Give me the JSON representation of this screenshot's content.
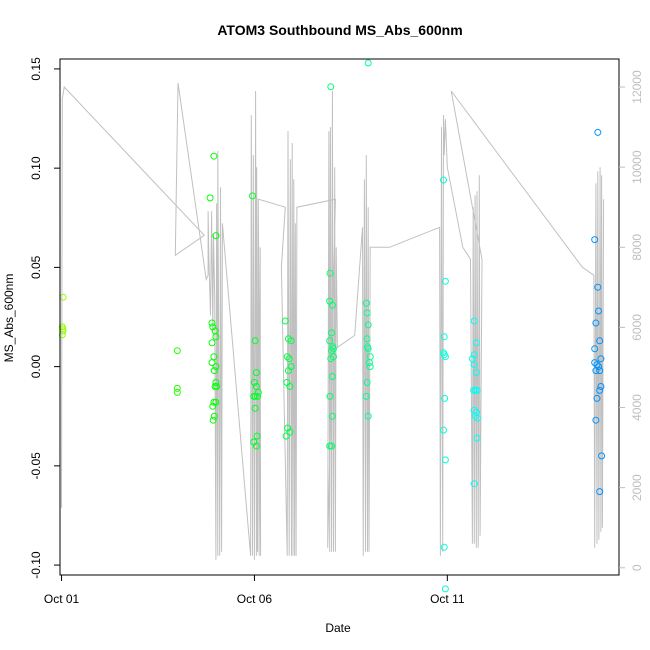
{
  "chart_data": {
    "type": "scatter",
    "title": "ATOM3 Southbound MS_Abs_600nm",
    "xlabel": "Date",
    "ylabel": "MS_Abs_600nm",
    "x_ticks": [
      {
        "value": 0,
        "label": "Oct 01"
      },
      {
        "value": 5,
        "label": "Oct 06"
      },
      {
        "value": 10,
        "label": "Oct 11"
      }
    ],
    "xlim": [
      -0.04,
      14.45
    ],
    "ylim": [
      -0.105,
      0.155
    ],
    "y_ticks": [
      -0.1,
      -0.05,
      0.0,
      0.05,
      0.1,
      0.15
    ],
    "y_tick_labels": [
      "-0.10",
      "-0.05",
      "0.00",
      "0.05",
      "0.10",
      "0.15"
    ],
    "y2lim": [
      -180,
      12700
    ],
    "y2_ticks": [
      0,
      2000,
      4000,
      6000,
      8000,
      10000,
      12000
    ],
    "y2_tick_labels": [
      "0",
      "2000",
      "4000",
      "6000",
      "8000",
      "10000",
      "12000"
    ],
    "grid": false,
    "legend": "none",
    "colors": {
      "axis": "#000000",
      "secondary_axis": "#bebebe",
      "altitude_line": "#c0c0c0",
      "first_point": "#adff2f",
      "last_point": "#1e90ff"
    },
    "series": [
      {
        "marker": "open-circle",
        "points": [
          [
            0.02,
            0.02
          ],
          [
            0.03,
            0.019
          ],
          [
            0.02,
            0.016
          ],
          [
            0.04,
            0.018
          ],
          [
            0.04,
            0.035
          ],
          [
            3.0,
            0.008
          ],
          [
            3.0,
            -0.011
          ],
          [
            3.0,
            -0.013
          ],
          [
            3.85,
            0.085
          ],
          [
            3.9,
            0.022
          ],
          [
            3.9,
            0.012
          ],
          [
            3.95,
            0.106
          ],
          [
            4.0,
            0.066
          ],
          [
            3.92,
            0.02
          ],
          [
            3.98,
            0.018
          ],
          [
            3.95,
            0.005
          ],
          [
            3.9,
            0.002
          ],
          [
            4.0,
            0.0
          ],
          [
            3.96,
            -0.002
          ],
          [
            4.0,
            -0.008
          ],
          [
            3.98,
            -0.01
          ],
          [
            4.02,
            -0.01
          ],
          [
            3.95,
            -0.018
          ],
          [
            4.0,
            -0.018
          ],
          [
            3.92,
            -0.02
          ],
          [
            3.96,
            -0.025
          ],
          [
            3.93,
            -0.027
          ],
          [
            4.0,
            0.015
          ],
          [
            4.95,
            0.086
          ],
          [
            5.02,
            0.013
          ],
          [
            5.05,
            -0.003
          ],
          [
            5.0,
            -0.008
          ],
          [
            5.05,
            -0.01
          ],
          [
            5.1,
            -0.013
          ],
          [
            4.98,
            -0.015
          ],
          [
            5.02,
            -0.015
          ],
          [
            5.08,
            -0.015
          ],
          [
            5.02,
            -0.021
          ],
          [
            5.07,
            -0.035
          ],
          [
            4.98,
            -0.038
          ],
          [
            5.05,
            -0.04
          ],
          [
            5.8,
            0.023
          ],
          [
            5.88,
            0.014
          ],
          [
            5.95,
            0.013
          ],
          [
            5.85,
            0.005
          ],
          [
            5.9,
            0.004
          ],
          [
            5.95,
            0.0
          ],
          [
            5.88,
            -0.002
          ],
          [
            5.84,
            -0.008
          ],
          [
            5.92,
            -0.01
          ],
          [
            5.86,
            -0.031
          ],
          [
            5.92,
            -0.033
          ],
          [
            5.82,
            -0.035
          ],
          [
            6.98,
            0.141
          ],
          [
            6.96,
            0.047
          ],
          [
            6.95,
            0.033
          ],
          [
            7.02,
            0.031
          ],
          [
            7.0,
            0.017
          ],
          [
            6.95,
            0.013
          ],
          [
            7.03,
            0.01
          ],
          [
            7.0,
            0.008
          ],
          [
            7.05,
            0.005
          ],
          [
            6.98,
            0.004
          ],
          [
            7.02,
            -0.005
          ],
          [
            6.96,
            -0.015
          ],
          [
            7.02,
            -0.025
          ],
          [
            6.95,
            -0.04
          ],
          [
            7.0,
            -0.04
          ],
          [
            7.05,
            0.009
          ],
          [
            7.95,
            0.153
          ],
          [
            7.9,
            0.032
          ],
          [
            7.92,
            0.027
          ],
          [
            7.95,
            0.021
          ],
          [
            7.92,
            0.014
          ],
          [
            7.93,
            0.01
          ],
          [
            7.95,
            0.009
          ],
          [
            8.0,
            0.005
          ],
          [
            7.98,
            0.002
          ],
          [
            8.0,
            0.0
          ],
          [
            7.92,
            -0.008
          ],
          [
            7.9,
            -0.015
          ],
          [
            7.95,
            -0.025
          ],
          [
            9.9,
            0.094
          ],
          [
            9.95,
            0.043
          ],
          [
            9.92,
            0.015
          ],
          [
            9.9,
            0.007
          ],
          [
            9.92,
            0.006
          ],
          [
            9.95,
            0.005
          ],
          [
            9.93,
            -0.016
          ],
          [
            9.9,
            -0.032
          ],
          [
            9.95,
            -0.047
          ],
          [
            9.92,
            -0.091
          ],
          [
            9.95,
            -0.112
          ],
          [
            10.7,
            0.023
          ],
          [
            10.75,
            0.012
          ],
          [
            10.7,
            0.006
          ],
          [
            10.65,
            0.004
          ],
          [
            10.7,
            0.001
          ],
          [
            10.75,
            -0.003
          ],
          [
            10.68,
            -0.012
          ],
          [
            10.72,
            -0.012
          ],
          [
            10.77,
            -0.012
          ],
          [
            10.7,
            -0.022
          ],
          [
            10.75,
            -0.023
          ],
          [
            10.72,
            -0.025
          ],
          [
            10.78,
            -0.026
          ],
          [
            10.77,
            -0.036
          ],
          [
            10.7,
            -0.059
          ],
          [
            13.9,
            0.118
          ],
          [
            13.82,
            0.064
          ],
          [
            13.9,
            0.04
          ],
          [
            13.92,
            0.028
          ],
          [
            13.85,
            0.022
          ],
          [
            13.95,
            0.013
          ],
          [
            13.82,
            0.009
          ],
          [
            13.98,
            0.004
          ],
          [
            13.82,
            0.002
          ],
          [
            13.88,
            0.001
          ],
          [
            13.92,
            0.0
          ],
          [
            13.85,
            -0.002
          ],
          [
            13.95,
            -0.002
          ],
          [
            13.98,
            -0.01
          ],
          [
            13.95,
            -0.012
          ],
          [
            13.88,
            -0.016
          ],
          [
            13.85,
            -0.027
          ],
          [
            14.0,
            -0.045
          ],
          [
            13.95,
            -0.063
          ]
        ]
      }
    ],
    "altitude_line": {
      "axis": "secondary",
      "points": [
        [
          0.0,
          1500
        ],
        [
          0.02,
          11700
        ],
        [
          0.07,
          12000
        ],
        [
          3.7,
          8300
        ],
        [
          2.95,
          7800
        ],
        [
          3.02,
          12100
        ],
        [
          3.75,
          7200
        ],
        [
          3.8,
          7300
        ],
        [
          3.8,
          8900
        ],
        [
          3.82,
          7700
        ],
        [
          3.86,
          6300
        ],
        [
          3.89,
          8900
        ],
        [
          3.92,
          5900
        ],
        [
          3.94,
          8300
        ],
        [
          3.97,
          6800
        ],
        [
          4.0,
          200
        ],
        [
          4.02,
          9100
        ],
        [
          4.05,
          300
        ],
        [
          4.05,
          10400
        ],
        [
          4.1,
          300
        ],
        [
          4.12,
          9500
        ],
        [
          4.15,
          400
        ],
        [
          4.17,
          8600
        ],
        [
          4.9,
          300
        ],
        [
          4.92,
          11300
        ],
        [
          4.95,
          300
        ],
        [
          4.97,
          10300
        ],
        [
          5.0,
          200
        ],
        [
          5.03,
          11900
        ],
        [
          5.05,
          300
        ],
        [
          5.06,
          10000
        ],
        [
          5.08,
          400
        ],
        [
          5.1,
          9000
        ],
        [
          5.12,
          300
        ],
        [
          5.15,
          8000
        ],
        [
          5.16,
          300
        ],
        [
          5.1,
          9200
        ],
        [
          5.8,
          9000
        ],
        [
          5.7,
          7500
        ],
        [
          5.85,
          300
        ],
        [
          5.87,
          10900
        ],
        [
          5.9,
          300
        ],
        [
          5.93,
          10200
        ],
        [
          5.96,
          300
        ],
        [
          5.98,
          10600
        ],
        [
          6.0,
          300
        ],
        [
          6.02,
          9700
        ],
        [
          6.04,
          300
        ],
        [
          6.06,
          8600
        ],
        [
          6.08,
          300
        ],
        [
          6.1,
          9000
        ],
        [
          7.1,
          9200
        ],
        [
          6.9,
          500
        ],
        [
          6.93,
          10900
        ],
        [
          6.95,
          400
        ],
        [
          6.97,
          11000
        ],
        [
          7.0,
          400
        ],
        [
          7.02,
          11900
        ],
        [
          7.05,
          400
        ],
        [
          7.08,
          10000
        ],
        [
          7.1,
          400
        ],
        [
          7.12,
          8000
        ],
        [
          7.15,
          5500
        ],
        [
          7.6,
          5800
        ],
        [
          7.8,
          8500
        ],
        [
          7.82,
          300
        ],
        [
          7.85,
          9700
        ],
        [
          7.88,
          400
        ],
        [
          7.9,
          10300
        ],
        [
          7.93,
          400
        ],
        [
          7.95,
          9000
        ],
        [
          7.97,
          400
        ],
        [
          8.0,
          8000
        ],
        [
          8.5,
          8000
        ],
        [
          9.8,
          8500
        ],
        [
          9.82,
          300
        ],
        [
          9.85,
          11000
        ],
        [
          9.88,
          400
        ],
        [
          9.9,
          11300
        ],
        [
          9.92,
          10300
        ],
        [
          9.95,
          11200
        ],
        [
          10.0,
          10000
        ],
        [
          10.4,
          8000
        ],
        [
          10.6,
          7700
        ],
        [
          10.65,
          600
        ],
        [
          10.67,
          9000
        ],
        [
          10.7,
          600
        ],
        [
          10.72,
          9300
        ],
        [
          10.75,
          500
        ],
        [
          10.77,
          9400
        ],
        [
          10.8,
          500
        ],
        [
          10.83,
          9800
        ],
        [
          10.85,
          800
        ],
        [
          10.9,
          7700
        ],
        [
          10.1,
          11900
        ],
        [
          13.5,
          7500
        ],
        [
          13.8,
          7300
        ],
        [
          13.82,
          500
        ],
        [
          13.85,
          9600
        ],
        [
          13.88,
          600
        ],
        [
          13.9,
          9900
        ],
        [
          13.93,
          700
        ],
        [
          13.96,
          10000
        ],
        [
          13.98,
          900
        ],
        [
          14.0,
          9800
        ],
        [
          14.02,
          1000
        ],
        [
          14.05,
          9200
        ]
      ]
    }
  }
}
